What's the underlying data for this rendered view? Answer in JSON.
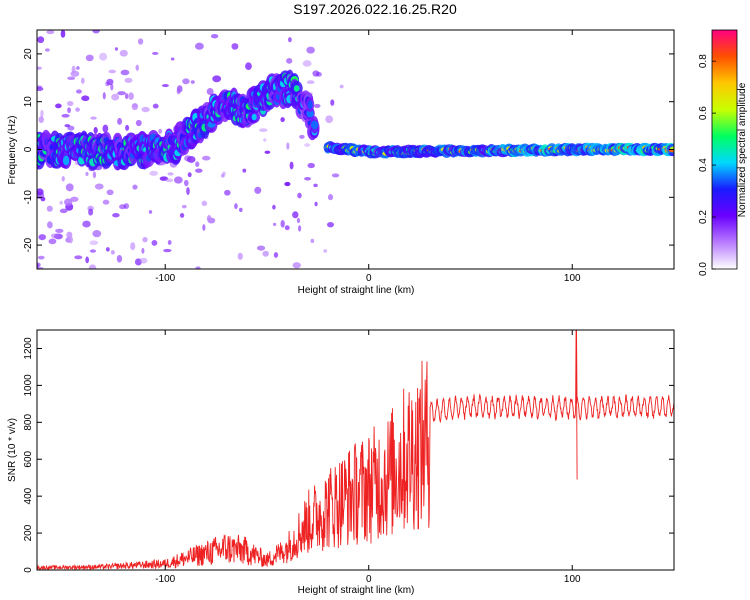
{
  "title": "S197.2026.022.16.25.R20",
  "chart_data": [
    {
      "type": "heatmap",
      "xlabel": "Height of straight line (km)",
      "ylabel": "Frequency (Hz)",
      "xlim": [
        -163,
        150
      ],
      "ylim": [
        -25,
        25
      ],
      "xticks": [
        {
          "v": -100,
          "label": "-100"
        },
        {
          "v": 0,
          "label": "0"
        },
        {
          "v": 100,
          "label": "100"
        }
      ],
      "yticks": [
        {
          "v": -20,
          "label": "-20"
        },
        {
          "v": -10,
          "label": "-10"
        },
        {
          "v": 0,
          "label": "0"
        },
        {
          "v": 10,
          "label": "10"
        },
        {
          "v": 20,
          "label": "20"
        }
      ],
      "colorbar": {
        "label": "Normalized spectral amplitude",
        "range": [
          0,
          0.92
        ],
        "ticks": [
          {
            "v": 0.0,
            "label": "0.0"
          },
          {
            "v": 0.2,
            "label": "0.2"
          },
          {
            "v": 0.4,
            "label": "0.4"
          },
          {
            "v": 0.6,
            "label": "0.6"
          },
          {
            "v": 0.8,
            "label": "0.8"
          }
        ],
        "colors": [
          "#ffffff",
          "#b87cff",
          "#6a00ff",
          "#1a1aff",
          "#00d8ff",
          "#00ff60",
          "#c8ff00",
          "#ffc800",
          "#ff5000",
          "#ff0080"
        ]
      },
      "ridge": [
        {
          "x": -163,
          "y": 0
        },
        {
          "x": -120,
          "y": -0.5
        },
        {
          "x": -95,
          "y": 1
        },
        {
          "x": -80,
          "y": 6
        },
        {
          "x": -72,
          "y": 10
        },
        {
          "x": -60,
          "y": 8
        },
        {
          "x": -48,
          "y": 12
        },
        {
          "x": -38,
          "y": 13
        },
        {
          "x": -30,
          "y": 9
        },
        {
          "x": -26,
          "y": 2.5
        },
        {
          "x": -20,
          "y": 0.5
        },
        {
          "x": -10,
          "y": 0
        },
        {
          "x": 0,
          "y": -0.5
        },
        {
          "x": 50,
          "y": -0.3
        },
        {
          "x": 100,
          "y": 0
        },
        {
          "x": 150,
          "y": 0
        }
      ]
    },
    {
      "type": "line",
      "xlabel": "Height of straight line (km)",
      "ylabel": "SNR (10 * v/v)",
      "xlim": [
        -163,
        150
      ],
      "ylim": [
        0,
        1300
      ],
      "xticks": [
        {
          "v": -100,
          "label": "-100"
        },
        {
          "v": 0,
          "label": "0"
        },
        {
          "v": 100,
          "label": "100"
        }
      ],
      "yticks": [
        {
          "v": 0,
          "label": "0"
        },
        {
          "v": 200,
          "label": "200"
        },
        {
          "v": 400,
          "label": "400"
        },
        {
          "v": 600,
          "label": "600"
        },
        {
          "v": 800,
          "label": "800"
        },
        {
          "v": 1000,
          "label": "1000"
        },
        {
          "v": 1200,
          "label": "1200"
        }
      ],
      "color": "#ee2222",
      "envelope": [
        {
          "x": -163,
          "y": 15
        },
        {
          "x": -130,
          "y": 20
        },
        {
          "x": -100,
          "y": 40
        },
        {
          "x": -85,
          "y": 90
        },
        {
          "x": -70,
          "y": 140
        },
        {
          "x": -60,
          "y": 120
        },
        {
          "x": -50,
          "y": 60
        },
        {
          "x": -40,
          "y": 150
        },
        {
          "x": -30,
          "y": 320
        },
        {
          "x": -20,
          "y": 420
        },
        {
          "x": -10,
          "y": 500
        },
        {
          "x": 0,
          "y": 560
        },
        {
          "x": 10,
          "y": 640
        },
        {
          "x": 20,
          "y": 780
        },
        {
          "x": 30,
          "y": 880
        },
        {
          "x": 50,
          "y": 905
        },
        {
          "x": 100,
          "y": 900
        },
        {
          "x": 150,
          "y": 905
        }
      ],
      "spike": {
        "x": 102,
        "max": 1320,
        "min": 490
      }
    }
  ]
}
